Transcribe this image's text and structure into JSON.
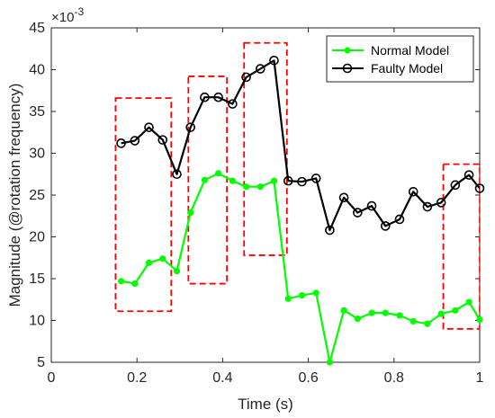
{
  "chart_data": {
    "type": "line",
    "xlabel": "Time (s)",
    "ylabel": "Magnitude (@rotation frequency)",
    "y_multiplier": "×10",
    "y_multiplier_exp": "-3",
    "xlim": [
      0,
      1
    ],
    "ylim": [
      5,
      45
    ],
    "xticks": [
      0,
      0.2,
      0.4,
      0.6,
      0.8,
      1
    ],
    "xtick_labels": [
      "0",
      "0.2",
      "0.4",
      "0.6",
      "0.8",
      "1"
    ],
    "yticks": [
      5,
      10,
      15,
      20,
      25,
      30,
      35,
      40,
      45
    ],
    "ytick_labels": [
      "5",
      "10",
      "15",
      "20",
      "25",
      "30",
      "35",
      "40",
      "45"
    ],
    "grid": false,
    "legend_position": "top-right",
    "series": [
      {
        "name": "Normal Model",
        "color": "#00ff00",
        "marker": "filled-circle",
        "x": [
          0.163,
          0.195,
          0.228,
          0.26,
          0.293,
          0.325,
          0.358,
          0.39,
          0.423,
          0.455,
          0.488,
          0.52,
          0.553,
          0.585,
          0.618,
          0.65,
          0.683,
          0.715,
          0.748,
          0.78,
          0.813,
          0.845,
          0.878,
          0.91,
          0.943,
          0.975,
          1.0
        ],
        "y": [
          14.7,
          14.4,
          16.9,
          17.4,
          15.9,
          22.9,
          26.8,
          27.6,
          26.7,
          26.0,
          26.0,
          26.7,
          12.6,
          13.0,
          13.3,
          5.0,
          11.2,
          10.2,
          10.9,
          10.9,
          10.6,
          9.9,
          9.6,
          10.8,
          11.2,
          12.2,
          10.1
        ]
      },
      {
        "name": "Faulty Model",
        "color": "#000000",
        "marker": "open-circle",
        "x": [
          0.163,
          0.195,
          0.228,
          0.26,
          0.293,
          0.325,
          0.358,
          0.39,
          0.423,
          0.455,
          0.488,
          0.52,
          0.553,
          0.585,
          0.618,
          0.65,
          0.683,
          0.715,
          0.748,
          0.78,
          0.813,
          0.845,
          0.878,
          0.91,
          0.943,
          0.975,
          1.0
        ],
        "y": [
          31.2,
          31.5,
          33.1,
          31.6,
          27.5,
          33.1,
          36.7,
          36.7,
          35.9,
          39.1,
          40.1,
          41.1,
          26.7,
          26.6,
          27.0,
          20.8,
          24.7,
          22.9,
          23.7,
          21.3,
          22.1,
          25.4,
          23.6,
          24.1,
          26.2,
          27.4,
          25.8
        ]
      }
    ],
    "highlight_boxes": [
      {
        "x0": 0.15,
        "x1": 0.28,
        "y0": 11.1,
        "y1": 36.6
      },
      {
        "x0": 0.32,
        "x1": 0.41,
        "y0": 14.4,
        "y1": 39.2
      },
      {
        "x0": 0.45,
        "x1": 0.55,
        "y0": 17.8,
        "y1": 43.2
      },
      {
        "x0": 0.915,
        "x1": 1.0,
        "y0": 9.0,
        "y1": 28.7
      }
    ],
    "highlight_color": "#ff0000"
  }
}
